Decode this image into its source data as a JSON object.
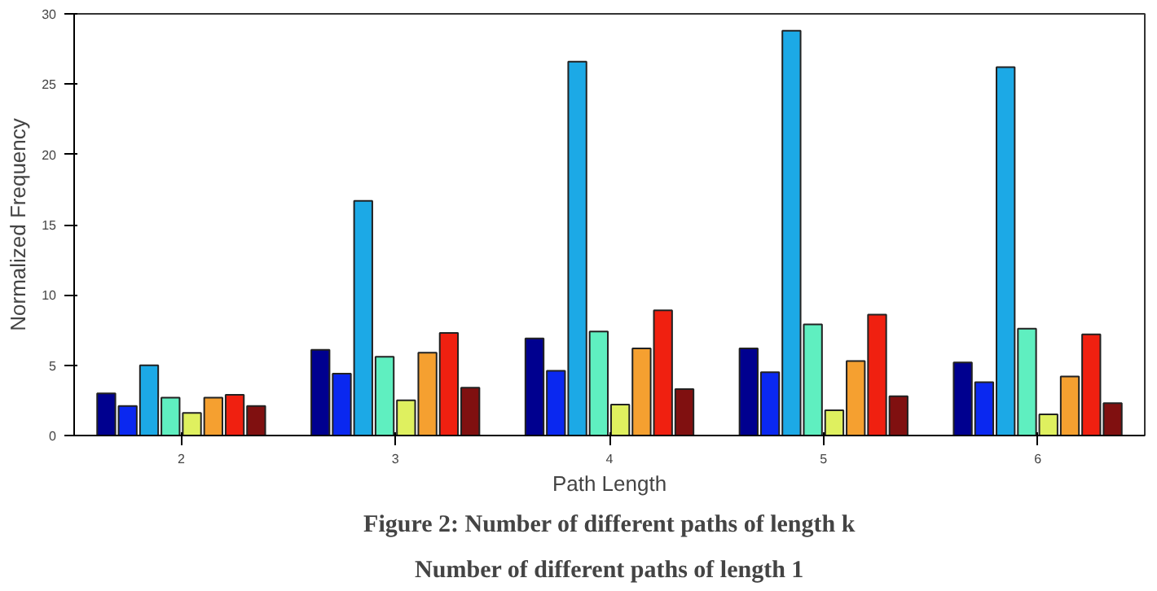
{
  "chart_data": {
    "type": "bar",
    "xlabel": "Path Length",
    "ylabel": "Normalized Frequency",
    "categories": [
      "2",
      "3",
      "4",
      "5",
      "6"
    ],
    "ylim": [
      0,
      30
    ],
    "yticks": [
      0,
      5,
      10,
      15,
      20,
      25,
      30
    ],
    "grid": false,
    "series": [
      {
        "color": "#00008f",
        "values": [
          3.0,
          6.1,
          6.9,
          6.2,
          5.2
        ]
      },
      {
        "color": "#0a28f0",
        "values": [
          2.1,
          4.4,
          4.6,
          4.5,
          3.8
        ]
      },
      {
        "color": "#1ca9e6",
        "values": [
          5.0,
          16.7,
          26.6,
          28.8,
          26.2
        ]
      },
      {
        "color": "#5fefc0",
        "values": [
          2.7,
          5.6,
          7.4,
          7.9,
          7.6
        ]
      },
      {
        "color": "#dff05f",
        "values": [
          1.6,
          2.5,
          2.2,
          1.8,
          1.5
        ]
      },
      {
        "color": "#f5a030",
        "values": [
          2.7,
          5.9,
          6.2,
          5.3,
          4.2
        ]
      },
      {
        "color": "#f02010",
        "values": [
          2.9,
          7.3,
          8.9,
          8.6,
          7.2
        ]
      },
      {
        "color": "#801010",
        "values": [
          2.1,
          3.4,
          3.3,
          2.8,
          2.3
        ]
      }
    ],
    "annotations": [
      "Figure 2: Number of different paths of length k",
      "Number of different paths of length 1"
    ]
  }
}
